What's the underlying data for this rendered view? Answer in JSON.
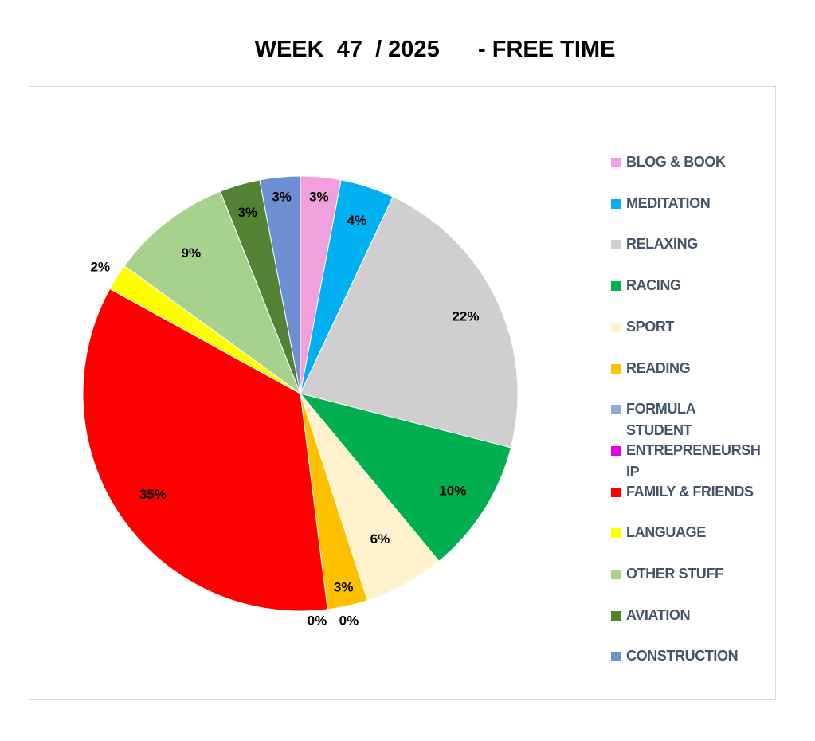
{
  "chart_data": {
    "type": "pie",
    "title": "WEEK  47  / 2025      - FREE TIME",
    "legend_position": "right",
    "slices": [
      {
        "label": "BLOG & BOOK",
        "value": 3,
        "data_label": "3%",
        "color": "#f0a0dc"
      },
      {
        "label": "MEDITATION",
        "value": 4,
        "data_label": "4%",
        "color": "#00b0f0"
      },
      {
        "label": "RELAXING",
        "value": 22,
        "data_label": "22%",
        "color": "#d0cece"
      },
      {
        "label": "RACING",
        "value": 10,
        "data_label": "10%",
        "color": "#00b050"
      },
      {
        "label": "SPORT",
        "value": 6,
        "data_label": "6%",
        "color": "#fff2cc"
      },
      {
        "label": "READING",
        "value": 3,
        "data_label": "3%",
        "color": "#ffc000"
      },
      {
        "label": "FORMULA STUDENT",
        "value": 0,
        "data_label": "0%",
        "color": "#8eaadb"
      },
      {
        "label": "ENTREPRENEURSHIP",
        "value": 0,
        "data_label": "0%",
        "color": "#e600e6"
      },
      {
        "label": "FAMILY & FRIENDS",
        "value": 35,
        "data_label": "35%",
        "color": "#ff0000"
      },
      {
        "label": "LANGUAGE",
        "value": 2,
        "data_label": "2%",
        "color": "#ffff00"
      },
      {
        "label": "OTHER STUFF",
        "value": 9,
        "data_label": "9%",
        "color": "#a9d18e"
      },
      {
        "label": "AVIATION",
        "value": 3,
        "data_label": "3%",
        "color": "#548235"
      },
      {
        "label": "CONSTRUCTION",
        "value": 3,
        "data_label": "3%",
        "color": "#6f8fd4"
      }
    ],
    "legend": [
      {
        "line1": "BLOG & BOOK",
        "line2": ""
      },
      {
        "line1": "MEDITATION",
        "line2": ""
      },
      {
        "line1": "RELAXING",
        "line2": ""
      },
      {
        "line1": "RACING",
        "line2": ""
      },
      {
        "line1": "SPORT",
        "line2": ""
      },
      {
        "line1": "READING",
        "line2": ""
      },
      {
        "line1": "FORMULA",
        "line2": "STUDENT"
      },
      {
        "line1": "ENTREPRENEURSH",
        "line2": "IP"
      },
      {
        "line1": "FAMILY & FRIENDS",
        "line2": ""
      },
      {
        "line1": "LANGUAGE",
        "line2": ""
      },
      {
        "line1": "OTHER STUFF",
        "line2": ""
      },
      {
        "line1": "AVIATION",
        "line2": ""
      },
      {
        "line1": "CONSTRUCTION",
        "line2": ""
      }
    ]
  }
}
